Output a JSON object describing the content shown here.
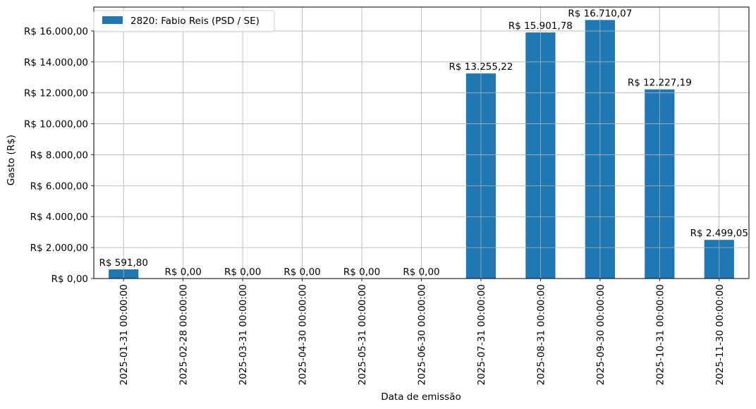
{
  "chart_data": {
    "type": "bar",
    "xlabel": "Data de emissão",
    "ylabel": "Gasto (R$)",
    "categories": [
      "2025-01-31 00:00:00",
      "2025-02-28 00:00:00",
      "2025-03-31 00:00:00",
      "2025-04-30 00:00:00",
      "2025-05-31 00:00:00",
      "2025-06-30 00:00:00",
      "2025-07-31 00:00:00",
      "2025-08-31 00:00:00",
      "2025-09-30 00:00:00",
      "2025-10-31 00:00:00",
      "2025-11-30 00:00:00"
    ],
    "series": [
      {
        "name": "2820: Fabio Reis (PSD / SE)",
        "color": "#1f77b4",
        "values": [
          591.8,
          0,
          0,
          0,
          0,
          0,
          13255.22,
          15901.78,
          16710.07,
          12227.19,
          2499.05
        ],
        "labels": [
          "R$ 591,80",
          "R$ 0,00",
          "R$ 0,00",
          "R$ 0,00",
          "R$ 0,00",
          "R$ 0,00",
          "R$ 13.255,22",
          "R$ 15.901,78",
          "R$ 16.710,07",
          "R$ 12.227,19",
          "R$ 2.499,05"
        ]
      }
    ],
    "ylim": [
      0,
      17546
    ],
    "yticks": [
      0,
      2000,
      4000,
      6000,
      8000,
      10000,
      12000,
      14000,
      16000
    ],
    "ytick_labels": [
      "R$ 0,00",
      "R$ 2.000,00",
      "R$ 4.000,00",
      "R$ 6.000,00",
      "R$ 8.000,00",
      "R$ 10.000,00",
      "R$ 12.000,00",
      "R$ 14.000,00",
      "R$ 16.000,00"
    ],
    "grid": true,
    "legend_position": "top-left"
  }
}
